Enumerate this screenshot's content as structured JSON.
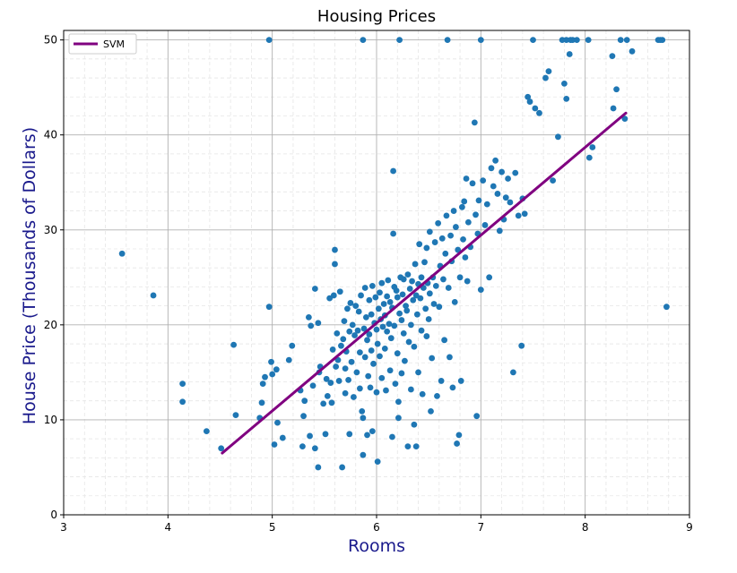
{
  "chart_data": {
    "type": "scatter",
    "title": "Housing Prices",
    "xlabel": "Rooms",
    "ylabel": "House Price (Thousands of Dollars)",
    "xlim": [
      3,
      9
    ],
    "ylim": [
      0,
      51
    ],
    "xticks": [
      3,
      4,
      5,
      6,
      7,
      8,
      9
    ],
    "yticks": [
      0,
      10,
      20,
      30,
      40,
      50
    ],
    "grid": true,
    "minor_grid": true,
    "legend": {
      "placement": "top-left",
      "entries": [
        "SVM"
      ]
    },
    "colors": {
      "points": "#1f77b4",
      "line": "#800080",
      "label": "#1a1a8c",
      "grid": "#b0b0b0"
    },
    "series": [
      {
        "kind": "scatter",
        "points": [
          [
            3.56,
            27.5
          ],
          [
            3.86,
            23.1
          ],
          [
            4.14,
            13.8
          ],
          [
            4.14,
            11.9
          ],
          [
            4.37,
            8.8
          ],
          [
            4.51,
            7.0
          ],
          [
            4.63,
            17.9
          ],
          [
            4.65,
            10.5
          ],
          [
            4.88,
            10.2
          ],
          [
            4.9,
            11.8
          ],
          [
            4.91,
            13.8
          ],
          [
            4.93,
            14.5
          ],
          [
            4.97,
            21.9
          ],
          [
            4.97,
            50.0
          ],
          [
            4.99,
            16.1
          ],
          [
            5.0,
            14.8
          ],
          [
            5.02,
            7.4
          ],
          [
            5.04,
            15.3
          ],
          [
            5.05,
            9.7
          ],
          [
            5.1,
            8.1
          ],
          [
            5.16,
            16.3
          ],
          [
            5.19,
            17.8
          ],
          [
            5.27,
            13.1
          ],
          [
            5.29,
            7.2
          ],
          [
            5.3,
            10.4
          ],
          [
            5.31,
            12.0
          ],
          [
            5.35,
            20.8
          ],
          [
            5.36,
            8.3
          ],
          [
            5.37,
            19.9
          ],
          [
            5.39,
            13.6
          ],
          [
            5.41,
            23.8
          ],
          [
            5.41,
            7.0
          ],
          [
            5.44,
            5.0
          ],
          [
            5.44,
            20.2
          ],
          [
            5.45,
            15.0
          ],
          [
            5.46,
            15.6
          ],
          [
            5.49,
            11.7
          ],
          [
            5.51,
            8.5
          ],
          [
            5.52,
            14.3
          ],
          [
            5.53,
            12.5
          ],
          [
            5.55,
            22.8
          ],
          [
            5.56,
            13.9
          ],
          [
            5.57,
            11.8
          ],
          [
            5.58,
            17.4
          ],
          [
            5.59,
            23.1
          ],
          [
            5.6,
            27.9
          ],
          [
            5.6,
            26.4
          ],
          [
            5.61,
            15.6
          ],
          [
            5.62,
            19.1
          ],
          [
            5.63,
            16.3
          ],
          [
            5.64,
            14.1
          ],
          [
            5.65,
            23.5
          ],
          [
            5.66,
            17.8
          ],
          [
            5.67,
            5.0
          ],
          [
            5.68,
            18.5
          ],
          [
            5.69,
            20.4
          ],
          [
            5.7,
            12.8
          ],
          [
            5.7,
            15.4
          ],
          [
            5.71,
            17.2
          ],
          [
            5.72,
            21.7
          ],
          [
            5.73,
            14.2
          ],
          [
            5.74,
            19.3
          ],
          [
            5.74,
            8.5
          ],
          [
            5.75,
            22.3
          ],
          [
            5.76,
            16.1
          ],
          [
            5.77,
            20.0
          ],
          [
            5.78,
            12.4
          ],
          [
            5.79,
            18.9
          ],
          [
            5.8,
            22.0
          ],
          [
            5.81,
            15.0
          ],
          [
            5.82,
            19.4
          ],
          [
            5.83,
            21.4
          ],
          [
            5.84,
            17.1
          ],
          [
            5.84,
            13.3
          ],
          [
            5.85,
            23.1
          ],
          [
            5.86,
            10.9
          ],
          [
            5.87,
            6.3
          ],
          [
            5.87,
            10.2
          ],
          [
            5.87,
            50.0
          ],
          [
            5.88,
            19.6
          ],
          [
            5.89,
            16.6
          ],
          [
            5.89,
            23.9
          ],
          [
            5.9,
            20.8
          ],
          [
            5.91,
            8.4
          ],
          [
            5.91,
            18.4
          ],
          [
            5.92,
            14.6
          ],
          [
            5.93,
            22.6
          ],
          [
            5.93,
            19.0
          ],
          [
            5.94,
            13.4
          ],
          [
            5.95,
            17.3
          ],
          [
            5.95,
            21.1
          ],
          [
            5.96,
            8.8
          ],
          [
            5.96,
            24.1
          ],
          [
            5.97,
            15.9
          ],
          [
            5.98,
            20.2
          ],
          [
            5.99,
            22.9
          ],
          [
            6.0,
            19.5
          ],
          [
            6.0,
            12.9
          ],
          [
            6.01,
            18.0
          ],
          [
            6.01,
            5.6
          ],
          [
            6.02,
            21.7
          ],
          [
            6.03,
            16.7
          ],
          [
            6.03,
            23.4
          ],
          [
            6.04,
            20.6
          ],
          [
            6.05,
            14.4
          ],
          [
            6.05,
            24.4
          ],
          [
            6.06,
            19.8
          ],
          [
            6.07,
            22.2
          ],
          [
            6.08,
            17.5
          ],
          [
            6.08,
            21.0
          ],
          [
            6.09,
            13.1
          ],
          [
            6.1,
            23.0
          ],
          [
            6.1,
            19.3
          ],
          [
            6.11,
            24.7
          ],
          [
            6.12,
            20.1
          ],
          [
            6.13,
            15.2
          ],
          [
            6.13,
            22.4
          ],
          [
            6.14,
            18.6
          ],
          [
            6.15,
            8.2
          ],
          [
            6.15,
            21.8
          ],
          [
            6.16,
            36.2
          ],
          [
            6.16,
            29.6
          ],
          [
            6.17,
            24.0
          ],
          [
            6.17,
            19.9
          ],
          [
            6.18,
            13.8
          ],
          [
            6.19,
            23.6
          ],
          [
            6.2,
            17.0
          ],
          [
            6.2,
            22.9
          ],
          [
            6.21,
            10.2
          ],
          [
            6.21,
            11.9
          ],
          [
            6.22,
            21.2
          ],
          [
            6.22,
            50.0
          ],
          [
            6.23,
            25.0
          ],
          [
            6.24,
            20.5
          ],
          [
            6.24,
            14.9
          ],
          [
            6.25,
            23.2
          ],
          [
            6.26,
            19.1
          ],
          [
            6.26,
            24.8
          ],
          [
            6.27,
            16.2
          ],
          [
            6.28,
            22.0
          ],
          [
            6.29,
            21.5
          ],
          [
            6.3,
            25.3
          ],
          [
            6.3,
            7.2
          ],
          [
            6.31,
            18.2
          ],
          [
            6.32,
            23.8
          ],
          [
            6.33,
            20.0
          ],
          [
            6.33,
            13.2
          ],
          [
            6.34,
            24.6
          ],
          [
            6.35,
            22.6
          ],
          [
            6.36,
            9.5
          ],
          [
            6.36,
            17.7
          ],
          [
            6.37,
            26.4
          ],
          [
            6.38,
            23.1
          ],
          [
            6.38,
            7.2
          ],
          [
            6.39,
            21.1
          ],
          [
            6.4,
            24.3
          ],
          [
            6.4,
            15.0
          ],
          [
            6.41,
            28.5
          ],
          [
            6.42,
            22.8
          ],
          [
            6.43,
            19.4
          ],
          [
            6.43,
            25.0
          ],
          [
            6.44,
            12.7
          ],
          [
            6.45,
            23.9
          ],
          [
            6.46,
            26.6
          ],
          [
            6.47,
            21.7
          ],
          [
            6.48,
            28.1
          ],
          [
            6.48,
            18.8
          ],
          [
            6.49,
            24.4
          ],
          [
            6.5,
            20.6
          ],
          [
            6.51,
            29.8
          ],
          [
            6.51,
            23.3
          ],
          [
            6.52,
            10.9
          ],
          [
            6.53,
            16.5
          ],
          [
            6.54,
            25.0
          ],
          [
            6.55,
            22.2
          ],
          [
            6.56,
            28.7
          ],
          [
            6.57,
            24.1
          ],
          [
            6.58,
            12.5
          ],
          [
            6.59,
            30.7
          ],
          [
            6.6,
            21.9
          ],
          [
            6.61,
            26.2
          ],
          [
            6.62,
            14.1
          ],
          [
            6.63,
            29.1
          ],
          [
            6.64,
            24.8
          ],
          [
            6.65,
            18.4
          ],
          [
            6.66,
            27.5
          ],
          [
            6.67,
            31.5
          ],
          [
            6.68,
            50.0
          ],
          [
            6.69,
            23.9
          ],
          [
            6.7,
            16.6
          ],
          [
            6.71,
            29.4
          ],
          [
            6.72,
            26.7
          ],
          [
            6.73,
            13.4
          ],
          [
            6.74,
            32.0
          ],
          [
            6.75,
            22.4
          ],
          [
            6.76,
            30.3
          ],
          [
            6.77,
            7.5
          ],
          [
            6.78,
            27.9
          ],
          [
            6.79,
            8.4
          ],
          [
            6.8,
            25.0
          ],
          [
            6.81,
            14.1
          ],
          [
            6.82,
            32.4
          ],
          [
            6.83,
            29.0
          ],
          [
            6.84,
            33.0
          ],
          [
            6.85,
            27.1
          ],
          [
            6.86,
            35.4
          ],
          [
            6.87,
            24.6
          ],
          [
            6.88,
            30.8
          ],
          [
            6.9,
            28.2
          ],
          [
            6.92,
            34.9
          ],
          [
            6.94,
            41.3
          ],
          [
            6.95,
            31.6
          ],
          [
            6.96,
            10.4
          ],
          [
            6.97,
            29.6
          ],
          [
            6.98,
            33.1
          ],
          [
            7.0,
            23.7
          ],
          [
            7.0,
            50.0
          ],
          [
            7.02,
            35.2
          ],
          [
            7.04,
            30.5
          ],
          [
            7.06,
            32.7
          ],
          [
            7.08,
            25.0
          ],
          [
            7.1,
            36.5
          ],
          [
            7.12,
            34.6
          ],
          [
            7.14,
            37.3
          ],
          [
            7.16,
            33.8
          ],
          [
            7.18,
            29.9
          ],
          [
            7.2,
            36.1
          ],
          [
            7.22,
            31.1
          ],
          [
            7.24,
            33.4
          ],
          [
            7.26,
            35.4
          ],
          [
            7.28,
            32.9
          ],
          [
            7.31,
            15.0
          ],
          [
            7.33,
            36.0
          ],
          [
            7.36,
            31.5
          ],
          [
            7.39,
            17.8
          ],
          [
            7.4,
            33.3
          ],
          [
            7.42,
            31.7
          ],
          [
            7.45,
            44.0
          ],
          [
            7.47,
            43.5
          ],
          [
            7.5,
            50.0
          ],
          [
            7.52,
            42.8
          ],
          [
            7.56,
            42.3
          ],
          [
            7.62,
            46.0
          ],
          [
            7.65,
            46.7
          ],
          [
            7.69,
            35.2
          ],
          [
            7.74,
            39.8
          ],
          [
            7.78,
            50.0
          ],
          [
            7.8,
            45.4
          ],
          [
            7.82,
            50.0
          ],
          [
            7.82,
            43.8
          ],
          [
            7.85,
            48.5
          ],
          [
            7.86,
            50.0
          ],
          [
            7.88,
            50.0
          ],
          [
            7.92,
            50.0
          ],
          [
            8.03,
            50.0
          ],
          [
            8.04,
            37.6
          ],
          [
            8.07,
            38.7
          ],
          [
            8.26,
            48.3
          ],
          [
            8.27,
            42.8
          ],
          [
            8.3,
            44.8
          ],
          [
            8.34,
            50.0
          ],
          [
            8.38,
            41.7
          ],
          [
            8.4,
            50.0
          ],
          [
            8.45,
            48.8
          ],
          [
            8.7,
            50.0
          ],
          [
            8.72,
            50.0
          ],
          [
            8.74,
            50.0
          ],
          [
            8.78,
            21.9
          ]
        ]
      },
      {
        "kind": "line",
        "name": "SVM",
        "points": [
          [
            4.52,
            6.5
          ],
          [
            8.39,
            42.3
          ]
        ]
      }
    ]
  }
}
